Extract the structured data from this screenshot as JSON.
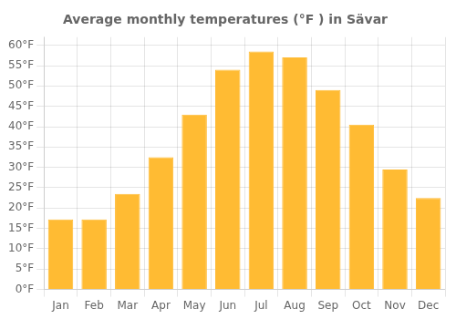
{
  "chart_data": {
    "type": "bar",
    "title": "Average monthly temperatures (°F ) in Sävar",
    "categories": [
      "Jan",
      "Feb",
      "Mar",
      "Apr",
      "May",
      "Jun",
      "Jul",
      "Aug",
      "Sep",
      "Oct",
      "Nov",
      "Dec"
    ],
    "values": [
      17.2,
      17.2,
      23.5,
      32.5,
      43.0,
      54.0,
      58.5,
      57.0,
      49.0,
      40.5,
      29.5,
      22.5
    ],
    "color": "#FFBB33",
    "ylim": [
      0,
      62
    ],
    "yticks": [
      {
        "value": 0,
        "label": "0°F"
      },
      {
        "value": 5,
        "label": "5°F"
      },
      {
        "value": 10,
        "label": "10°F"
      },
      {
        "value": 15,
        "label": "15°F"
      },
      {
        "value": 20,
        "label": "20°F"
      },
      {
        "value": 25,
        "label": "25°F"
      },
      {
        "value": 30,
        "label": "30°F"
      },
      {
        "value": 35,
        "label": "35°F"
      },
      {
        "value": 40,
        "label": "40°F"
      },
      {
        "value": 45,
        "label": "45°F"
      },
      {
        "value": 50,
        "label": "50°F"
      },
      {
        "value": 55,
        "label": "55°F"
      },
      {
        "value": 60,
        "label": "60°F"
      }
    ],
    "grid": true
  }
}
